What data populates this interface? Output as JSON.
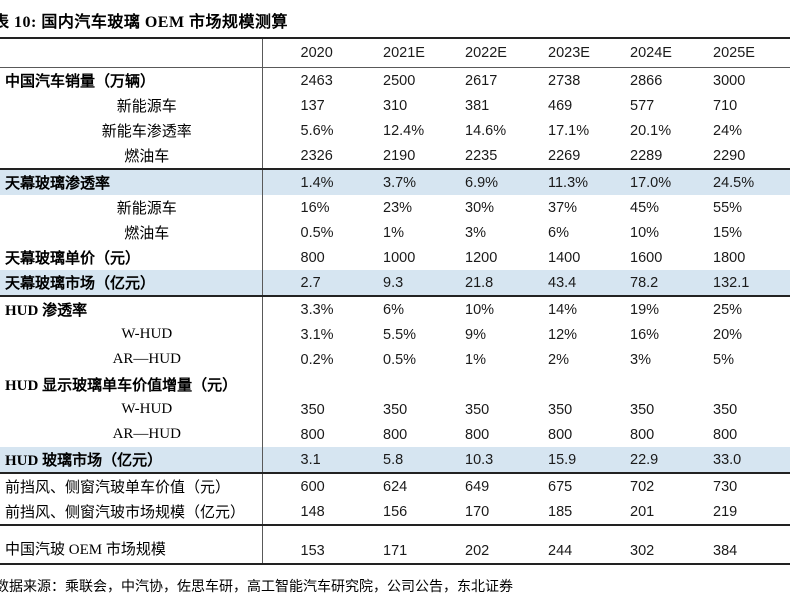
{
  "title": "表 10: 国内汽车玻璃 OEM 市场规模测算",
  "source_note": "数据来源：乘联会，中汽协，佐思车研，高工智能汽车研究院，公司公告，东北证券",
  "columns": [
    "2020",
    "2021E",
    "2022E",
    "2023E",
    "2024E",
    "2025E"
  ],
  "rows": [
    {
      "label": "中国汽车销量（万辆）",
      "style": "bold",
      "highlight": false,
      "rule_top": false,
      "gap_top": false,
      "values": [
        "2463",
        "2500",
        "2617",
        "2738",
        "2866",
        "3000"
      ]
    },
    {
      "label": "新能源车",
      "style": "sub",
      "highlight": false,
      "rule_top": false,
      "gap_top": false,
      "values": [
        "137",
        "310",
        "381",
        "469",
        "577",
        "710"
      ]
    },
    {
      "label": "新能车渗透率",
      "style": "sub",
      "highlight": false,
      "rule_top": false,
      "gap_top": false,
      "values": [
        "5.6%",
        "12.4%",
        "14.6%",
        "17.1%",
        "20.1%",
        "24%"
      ]
    },
    {
      "label": "燃油车",
      "style": "sub",
      "highlight": false,
      "rule_top": false,
      "gap_top": false,
      "values": [
        "2326",
        "2190",
        "2235",
        "2269",
        "2289",
        "2290"
      ]
    },
    {
      "label": "天幕玻璃渗透率",
      "style": "bold",
      "highlight": true,
      "rule_top": true,
      "gap_top": false,
      "values": [
        "1.4%",
        "3.7%",
        "6.9%",
        "11.3%",
        "17.0%",
        "24.5%"
      ]
    },
    {
      "label": "新能源车",
      "style": "sub",
      "highlight": false,
      "rule_top": false,
      "gap_top": false,
      "values": [
        "16%",
        "23%",
        "30%",
        "37%",
        "45%",
        "55%"
      ]
    },
    {
      "label": "燃油车",
      "style": "sub",
      "highlight": false,
      "rule_top": false,
      "gap_top": false,
      "values": [
        "0.5%",
        "1%",
        "3%",
        "6%",
        "10%",
        "15%"
      ]
    },
    {
      "label": "天幕玻璃单价（元）",
      "style": "bold",
      "highlight": false,
      "rule_top": false,
      "gap_top": false,
      "values": [
        "800",
        "1000",
        "1200",
        "1400",
        "1600",
        "1800"
      ]
    },
    {
      "label": "天幕玻璃市场（亿元）",
      "style": "bold",
      "highlight": true,
      "rule_top": false,
      "gap_top": false,
      "values": [
        "2.7",
        "9.3",
        "21.8",
        "43.4",
        "78.2",
        "132.1"
      ]
    },
    {
      "label": "HUD 渗透率",
      "style": "bold",
      "highlight": false,
      "rule_top": true,
      "gap_top": false,
      "values": [
        "3.3%",
        "6%",
        "10%",
        "14%",
        "19%",
        "25%"
      ]
    },
    {
      "label": "W-HUD",
      "style": "sub",
      "highlight": false,
      "rule_top": false,
      "gap_top": false,
      "values": [
        "3.1%",
        "5.5%",
        "9%",
        "12%",
        "16%",
        "20%"
      ]
    },
    {
      "label": "AR—HUD",
      "style": "sub",
      "highlight": false,
      "rule_top": false,
      "gap_top": false,
      "values": [
        "0.2%",
        "0.5%",
        "1%",
        "2%",
        "3%",
        "5%"
      ]
    },
    {
      "label": "HUD 显示玻璃单车价值增量（元）",
      "style": "bold",
      "highlight": false,
      "rule_top": false,
      "gap_top": false,
      "values": [
        "",
        "",
        "",
        "",
        "",
        ""
      ]
    },
    {
      "label": "W-HUD",
      "style": "sub",
      "highlight": false,
      "rule_top": false,
      "gap_top": false,
      "values": [
        "350",
        "350",
        "350",
        "350",
        "350",
        "350"
      ]
    },
    {
      "label": "AR—HUD",
      "style": "sub",
      "highlight": false,
      "rule_top": false,
      "gap_top": false,
      "values": [
        "800",
        "800",
        "800",
        "800",
        "800",
        "800"
      ]
    },
    {
      "label": "HUD 玻璃市场（亿元）",
      "style": "bold",
      "highlight": true,
      "rule_top": false,
      "gap_top": false,
      "values": [
        "3.1",
        "5.8",
        "10.3",
        "15.9",
        "22.9",
        "33.0"
      ]
    },
    {
      "label": "前挡风、侧窗汽玻单车价值（元）",
      "style": "plain",
      "highlight": false,
      "rule_top": true,
      "gap_top": false,
      "values": [
        "600",
        "624",
        "649",
        "675",
        "702",
        "730"
      ]
    },
    {
      "label": "前挡风、侧窗汽玻市场规模（亿元）",
      "style": "plain",
      "highlight": false,
      "rule_top": false,
      "gap_top": false,
      "values": [
        "148",
        "156",
        "170",
        "185",
        "201",
        "219"
      ]
    },
    {
      "label": "中国汽玻 OEM 市场规模",
      "style": "plain",
      "highlight": false,
      "rule_top": true,
      "gap_top": true,
      "values": [
        "153",
        "171",
        "202",
        "244",
        "302",
        "384"
      ]
    }
  ]
}
